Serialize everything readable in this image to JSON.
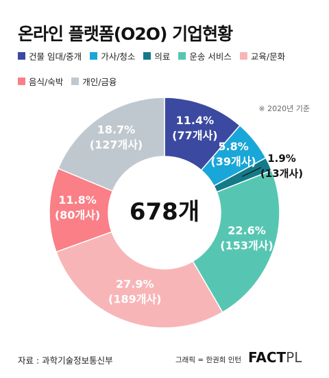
{
  "title": "온라인 플랫폼(O2O) 기업현황",
  "note": "※ 2020년 기준",
  "center_label": "678개",
  "source": "자료 : 과학기술정보통신부",
  "credit": "그래픽 = 한권희 인턴",
  "brand": {
    "main": "FACT",
    "suffix": "PL"
  },
  "chart_data": {
    "type": "pie",
    "donut": true,
    "total_label": "678개",
    "categories": [
      "건물 임대/중개",
      "가사/청소",
      "의료",
      "운송 서비스",
      "교육/문화",
      "음식/숙박",
      "개인/금융"
    ],
    "values": [
      77,
      39,
      13,
      153,
      189,
      80,
      127
    ],
    "percents": [
      "11.4%",
      "5.8%",
      "1.9%",
      "22.6%",
      "27.9%",
      "11.8%",
      "18.7%"
    ],
    "counts": [
      "(77개사)",
      "(39개사)",
      "(13개사)",
      "(153개사)",
      "(189개사)",
      "(80개사)",
      "(127개사)"
    ],
    "colors": [
      "#3b49a0",
      "#19a6d8",
      "#157a88",
      "#56c6b2",
      "#f8b5b8",
      "#fa7f86",
      "#c0c8cf"
    ],
    "legend_placement": "top"
  }
}
